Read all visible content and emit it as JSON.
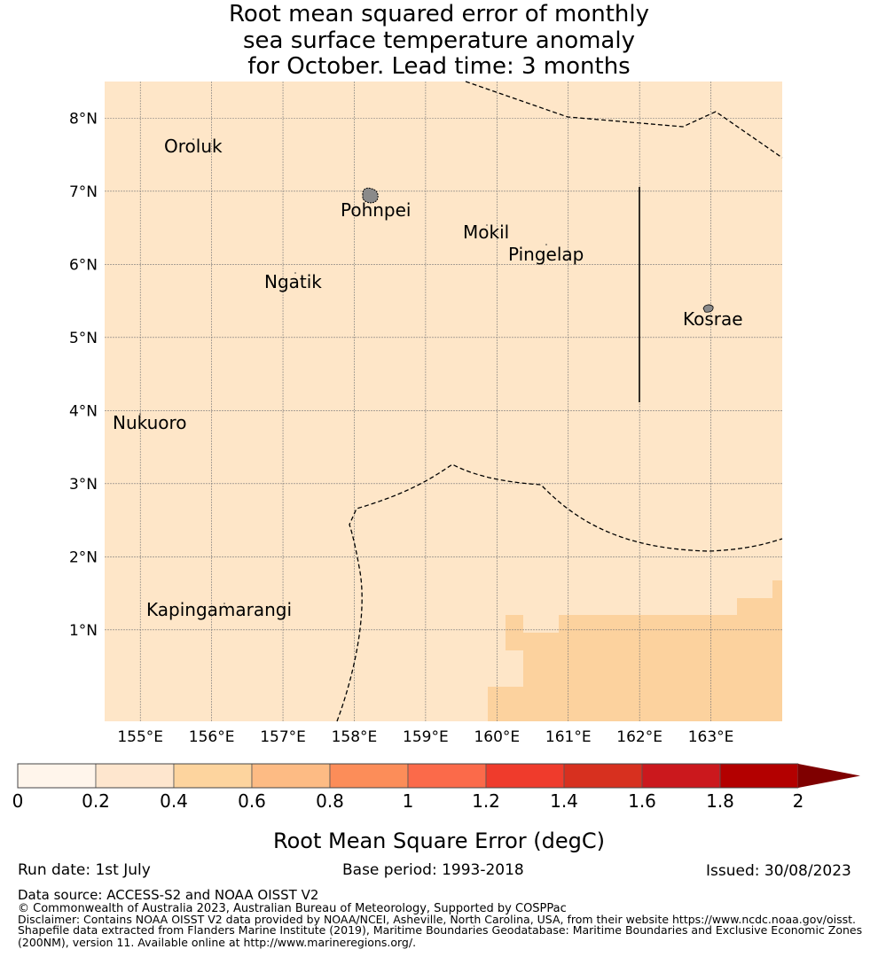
{
  "title": {
    "line1": "Root mean squared error of monthly",
    "line2": "sea surface temperature anomaly",
    "line3": "for October. Lead time: 3 months"
  },
  "map": {
    "lon_range": [
      154.5,
      164.0
    ],
    "lat_range": [
      -0.25,
      8.5
    ],
    "lon_ticks": [
      "155°E",
      "156°E",
      "157°E",
      "158°E",
      "159°E",
      "160°E",
      "161°E",
      "162°E",
      "163°E"
    ],
    "lat_ticks": [
      "1°N",
      "2°N",
      "3°N",
      "4°N",
      "5°N",
      "6°N",
      "7°N",
      "8°N"
    ],
    "background_color": "#fee6c8",
    "places": [
      "Oroluk",
      "Pohnpei",
      "Mokil",
      "Pingelap",
      "Ngatik",
      "Kosrae",
      "Nukuoro",
      "Kapingamarangi"
    ],
    "grid": true
  },
  "colorbar": {
    "label": "Root Mean Square Error (degC)",
    "ticks": [
      "0",
      "0.2",
      "0.4",
      "0.6",
      "0.8",
      "1",
      "1.2",
      "1.4",
      "1.6",
      "1.8",
      "2"
    ],
    "colors": [
      "#fff5eb",
      "#fee6ce",
      "#fdd49e",
      "#fdbb84",
      "#fc8d59",
      "#fb6a4a",
      "#ef3b2c",
      "#d7301f",
      "#cb181d",
      "#b30000",
      "#7f0000"
    ]
  },
  "footer": {
    "run_date": "Run date: 1st July",
    "base_period": "Base period: 1993-2018",
    "issued": "Issued: 30/08/2023",
    "data_source": "Data source: ACCESS-S2 and NOAA OISST V2",
    "copyright": "© Commonwealth of Australia 2023, Australian Bureau of Meteorology, Supported by COSPPac",
    "disclaimer1": "Disclaimer: Contains NOAA OISST V2 data provided by NOAA/NCEI, Asheville, North Carolina, USA, from their website https://www.ncdc.noaa.gov/oisst.",
    "disclaimer2": "Shapefile data extracted from Flanders Marine Institute (2019), Maritime Boundaries Geodatabase: Maritime Boundaries and Exclusive Economic Zones",
    "disclaimer3": "(200NM), version 11. Available online at http://www.marineregions.org/."
  }
}
